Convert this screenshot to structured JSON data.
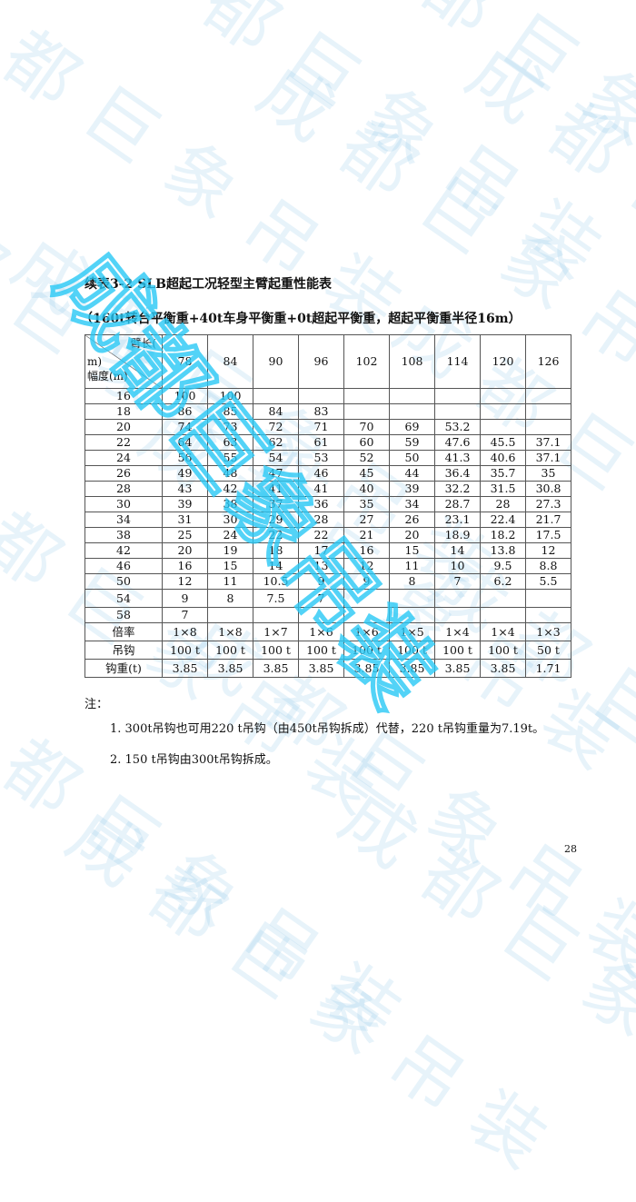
{
  "watermark": "成都巨象吊装",
  "title": "续表3-2 SLB超起工况轻型主臂起重性能表",
  "subtitle": "（160t转台平衡重+40t车身平衡重+0t超起平衡重，超起平衡重半径16m）",
  "table": {
    "corner": {
      "top": "臂长(",
      "mid": "m)",
      "bottom": "幅度(m)"
    },
    "boom_lengths": [
      "78",
      "84",
      "90",
      "96",
      "102",
      "108",
      "114",
      "120",
      "126"
    ],
    "rows": [
      {
        "radius": "16",
        "values": [
          "100",
          "100",
          "",
          "",
          "",
          "",
          "",
          "",
          ""
        ]
      },
      {
        "radius": "18",
        "values": [
          "86",
          "85",
          "84",
          "83",
          "",
          "",
          "",
          "",
          ""
        ]
      },
      {
        "radius": "20",
        "values": [
          "74",
          "73",
          "72",
          "71",
          "70",
          "69",
          "53.2",
          "",
          ""
        ]
      },
      {
        "radius": "22",
        "values": [
          "64",
          "63",
          "62",
          "61",
          "60",
          "59",
          "47.6",
          "45.5",
          "37.1"
        ]
      },
      {
        "radius": "24",
        "values": [
          "56",
          "55",
          "54",
          "53",
          "52",
          "50",
          "41.3",
          "40.6",
          "37.1"
        ]
      },
      {
        "radius": "26",
        "values": [
          "49",
          "48",
          "47",
          "46",
          "45",
          "44",
          "36.4",
          "35.7",
          "35"
        ]
      },
      {
        "radius": "28",
        "values": [
          "43",
          "42",
          "41",
          "41",
          "40",
          "39",
          "32.2",
          "31.5",
          "30.8"
        ]
      },
      {
        "radius": "30",
        "values": [
          "39",
          "38",
          "37",
          "36",
          "35",
          "34",
          "28.7",
          "28",
          "27.3"
        ]
      },
      {
        "radius": "34",
        "values": [
          "31",
          "30",
          "29",
          "28",
          "27",
          "26",
          "23.1",
          "22.4",
          "21.7"
        ]
      },
      {
        "radius": "38",
        "values": [
          "25",
          "24",
          "22",
          "22",
          "21",
          "20",
          "18.9",
          "18.2",
          "17.5"
        ]
      },
      {
        "radius": "42",
        "values": [
          "20",
          "19",
          "18",
          "17",
          "16",
          "15",
          "14",
          "13.8",
          "12"
        ]
      },
      {
        "radius": "46",
        "values": [
          "16",
          "15",
          "14",
          "13",
          "12",
          "11",
          "10",
          "9.5",
          "8.8"
        ]
      },
      {
        "radius": "50",
        "values": [
          "12",
          "11",
          "10.5",
          "9",
          "9",
          "8",
          "7",
          "6.2",
          "5.5"
        ]
      },
      {
        "radius": "54",
        "values": [
          "9",
          "8",
          "7.5",
          "7",
          "",
          "",
          "",
          "",
          ""
        ]
      },
      {
        "radius": "58",
        "values": [
          "7",
          "",
          "",
          "",
          "",
          "",
          "",
          "",
          ""
        ]
      }
    ],
    "footer_rows": [
      {
        "label": "倍率",
        "values": [
          "1×8",
          "1×8",
          "1×7",
          "1×6",
          "1×6",
          "1×5",
          "1×4",
          "1×4",
          "1×3"
        ]
      },
      {
        "label": "吊钩",
        "values": [
          "100 t",
          "100 t",
          "100 t",
          "100 t",
          "100 t",
          "100 t",
          "100 t",
          "100 t",
          "50 t"
        ]
      },
      {
        "label": "钩重(t)",
        "values": [
          "3.85",
          "3.85",
          "3.85",
          "3.85",
          "3.85",
          "3.85",
          "3.85",
          "3.85",
          "1.71"
        ]
      }
    ]
  },
  "notes": {
    "heading": "注：",
    "items": [
      "1. 300t吊钩也可用220 t吊钩（由450t吊钩拆成）代替，220 t吊钩重量为7.19t。",
      "2. 150 t吊钩由300t吊钩拆成。"
    ]
  },
  "page_number": "28"
}
